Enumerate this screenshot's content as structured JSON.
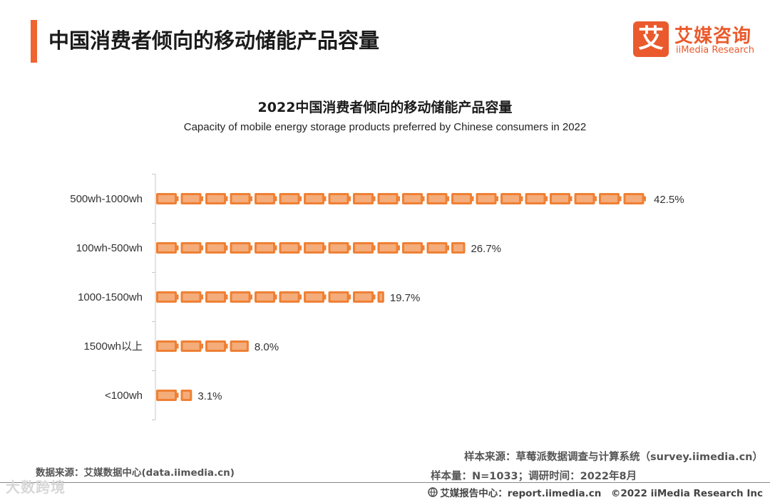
{
  "header": {
    "page_title": "中国消费者倾向的移动储能产品容量",
    "logo_mark": "艾",
    "logo_cn": "艾媒咨询",
    "logo_en": "iiMedia Research"
  },
  "chart_data": {
    "type": "bar",
    "orientation": "horizontal",
    "title": "2022中国消费者倾向的移动储能产品容量",
    "subtitle": "Capacity of mobile energy storage products preferred by Chinese consumers in 2022",
    "categories": [
      "500wh-1000wh",
      "100wh-500wh",
      "1000-1500wh",
      "1500wh以上",
      "<100wh"
    ],
    "values": [
      42.5,
      26.7,
      19.7,
      8.0,
      3.1
    ],
    "value_labels": [
      "42.5%",
      "26.7%",
      "19.7%",
      "8.0%",
      "3.1%"
    ],
    "unit": "%",
    "xlim": [
      0,
      42.5
    ],
    "grid": false,
    "bar_color": "#ef8034"
  },
  "footer": {
    "data_source": "数据来源：艾媒数据中心(data.iimedia.cn)",
    "sample_source": "样本来源：草莓派数据调查与计算系统（survey.iimedia.cn）",
    "sample_size": "样本量：N=1033；调研时间：2022年8月",
    "report_center": "艾媒报告中心：report.iimedia.cn　©2022  iiMedia Research  Inc",
    "watermark": "大数跨境"
  }
}
